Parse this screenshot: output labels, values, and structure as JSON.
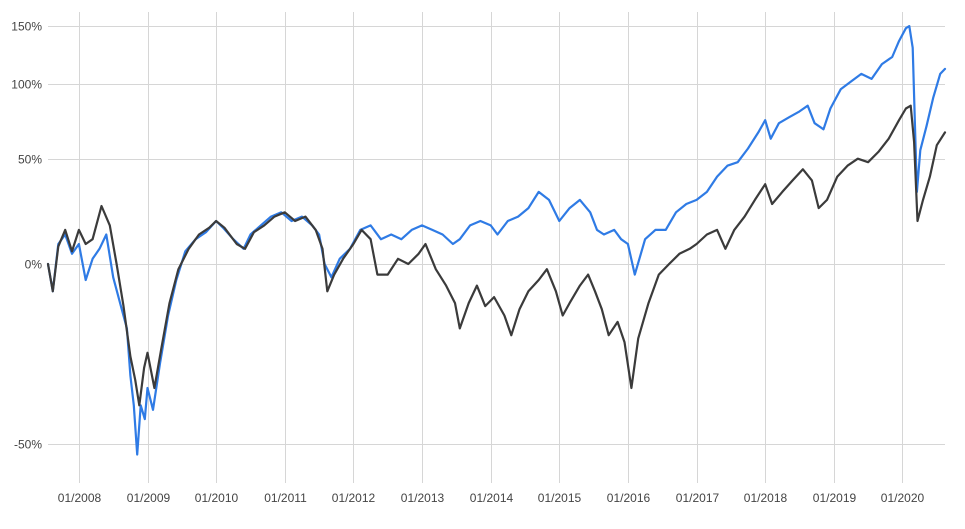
{
  "chart_data": {
    "type": "line",
    "title": "",
    "xlabel": "",
    "ylabel": "",
    "x_range": [
      2007.55,
      2020.62
    ],
    "y_range": [
      -57,
      164
    ],
    "y_scale": "log-return",
    "grid": true,
    "legend": "none",
    "x_ticks": [
      {
        "x": 2008.0,
        "label": "01/2008"
      },
      {
        "x": 2009.0,
        "label": "01/2009"
      },
      {
        "x": 2010.0,
        "label": "01/2010"
      },
      {
        "x": 2011.0,
        "label": "01/2011"
      },
      {
        "x": 2012.0,
        "label": "01/2012"
      },
      {
        "x": 2013.0,
        "label": "01/2013"
      },
      {
        "x": 2014.0,
        "label": "01/2014"
      },
      {
        "x": 2015.0,
        "label": "01/2015"
      },
      {
        "x": 2016.0,
        "label": "01/2016"
      },
      {
        "x": 2017.0,
        "label": "01/2017"
      },
      {
        "x": 2018.0,
        "label": "01/2018"
      },
      {
        "x": 2019.0,
        "label": "01/2019"
      },
      {
        "x": 2020.0,
        "label": "01/2020"
      }
    ],
    "y_ticks": [
      {
        "y": 150,
        "label": "150%"
      },
      {
        "y": 100,
        "label": "100%"
      },
      {
        "y": 50,
        "label": "50%"
      },
      {
        "y": 0,
        "label": "0%"
      },
      {
        "y": -50,
        "label": "-50%"
      }
    ],
    "series": [
      {
        "color": "#2f7be5",
        "points": [
          [
            2007.55,
            0
          ],
          [
            2007.62,
            -10
          ],
          [
            2007.7,
            8
          ],
          [
            2007.8,
            12
          ],
          [
            2007.9,
            4
          ],
          [
            2008.0,
            8
          ],
          [
            2008.1,
            -6
          ],
          [
            2008.2,
            2
          ],
          [
            2008.3,
            6
          ],
          [
            2008.4,
            12
          ],
          [
            2008.5,
            -5
          ],
          [
            2008.6,
            -14
          ],
          [
            2008.7,
            -22
          ],
          [
            2008.75,
            -35
          ],
          [
            2008.8,
            -42
          ],
          [
            2008.85,
            -52
          ],
          [
            2008.9,
            -42
          ],
          [
            2008.96,
            -45
          ],
          [
            2009.0,
            -38
          ],
          [
            2009.08,
            -43
          ],
          [
            2009.18,
            -32
          ],
          [
            2009.3,
            -18
          ],
          [
            2009.42,
            -6
          ],
          [
            2009.55,
            5
          ],
          [
            2009.7,
            10
          ],
          [
            2009.85,
            13
          ],
          [
            2010.0,
            18
          ],
          [
            2010.1,
            15
          ],
          [
            2010.25,
            10
          ],
          [
            2010.4,
            6
          ],
          [
            2010.5,
            12
          ],
          [
            2010.65,
            16
          ],
          [
            2010.8,
            20
          ],
          [
            2010.95,
            22
          ],
          [
            2011.1,
            18
          ],
          [
            2011.25,
            20
          ],
          [
            2011.4,
            16
          ],
          [
            2011.5,
            12
          ],
          [
            2011.58,
            0
          ],
          [
            2011.68,
            -5
          ],
          [
            2011.8,
            2
          ],
          [
            2011.95,
            6
          ],
          [
            2012.1,
            14
          ],
          [
            2012.25,
            16
          ],
          [
            2012.4,
            10
          ],
          [
            2012.55,
            12
          ],
          [
            2012.7,
            10
          ],
          [
            2012.85,
            14
          ],
          [
            2013.0,
            16
          ],
          [
            2013.15,
            14
          ],
          [
            2013.3,
            12
          ],
          [
            2013.45,
            8
          ],
          [
            2013.55,
            10
          ],
          [
            2013.7,
            16
          ],
          [
            2013.85,
            18
          ],
          [
            2014.0,
            16
          ],
          [
            2014.1,
            12
          ],
          [
            2014.25,
            18
          ],
          [
            2014.4,
            20
          ],
          [
            2014.55,
            24
          ],
          [
            2014.7,
            32
          ],
          [
            2014.85,
            28
          ],
          [
            2015.0,
            18
          ],
          [
            2015.15,
            24
          ],
          [
            2015.3,
            28
          ],
          [
            2015.45,
            22
          ],
          [
            2015.55,
            14
          ],
          [
            2015.65,
            12
          ],
          [
            2015.8,
            14
          ],
          [
            2015.9,
            10
          ],
          [
            2016.0,
            8
          ],
          [
            2016.1,
            -4
          ],
          [
            2016.25,
            10
          ],
          [
            2016.4,
            14
          ],
          [
            2016.55,
            14
          ],
          [
            2016.7,
            22
          ],
          [
            2016.85,
            26
          ],
          [
            2017.0,
            28
          ],
          [
            2017.15,
            32
          ],
          [
            2017.3,
            40
          ],
          [
            2017.45,
            46
          ],
          [
            2017.6,
            48
          ],
          [
            2017.75,
            56
          ],
          [
            2017.9,
            66
          ],
          [
            2018.0,
            74
          ],
          [
            2018.08,
            62
          ],
          [
            2018.2,
            72
          ],
          [
            2018.35,
            76
          ],
          [
            2018.5,
            80
          ],
          [
            2018.62,
            84
          ],
          [
            2018.72,
            72
          ],
          [
            2018.85,
            68
          ],
          [
            2018.95,
            82
          ],
          [
            2019.1,
            96
          ],
          [
            2019.25,
            102
          ],
          [
            2019.4,
            108
          ],
          [
            2019.55,
            104
          ],
          [
            2019.7,
            116
          ],
          [
            2019.85,
            122
          ],
          [
            2019.95,
            136
          ],
          [
            2020.05,
            148
          ],
          [
            2020.1,
            150
          ],
          [
            2020.15,
            130
          ],
          [
            2020.21,
            32
          ],
          [
            2020.26,
            55
          ],
          [
            2020.35,
            70
          ],
          [
            2020.45,
            90
          ],
          [
            2020.55,
            108
          ],
          [
            2020.62,
            112
          ]
        ]
      },
      {
        "color": "#3b3b3b",
        "points": [
          [
            2007.55,
            0
          ],
          [
            2007.62,
            -10
          ],
          [
            2007.7,
            7
          ],
          [
            2007.8,
            14
          ],
          [
            2007.9,
            5
          ],
          [
            2008.0,
            14
          ],
          [
            2008.1,
            8
          ],
          [
            2008.2,
            10
          ],
          [
            2008.33,
            25
          ],
          [
            2008.45,
            16
          ],
          [
            2008.55,
            0
          ],
          [
            2008.65,
            -15
          ],
          [
            2008.75,
            -30
          ],
          [
            2008.82,
            -36
          ],
          [
            2008.88,
            -42
          ],
          [
            2008.95,
            -33
          ],
          [
            2009.0,
            -29
          ],
          [
            2009.1,
            -38
          ],
          [
            2009.2,
            -28
          ],
          [
            2009.32,
            -14
          ],
          [
            2009.45,
            -2
          ],
          [
            2009.6,
            6
          ],
          [
            2009.75,
            12
          ],
          [
            2009.9,
            15
          ],
          [
            2010.0,
            18
          ],
          [
            2010.12,
            15
          ],
          [
            2010.3,
            8
          ],
          [
            2010.42,
            6
          ],
          [
            2010.55,
            13
          ],
          [
            2010.7,
            16
          ],
          [
            2010.85,
            20
          ],
          [
            2011.0,
            22
          ],
          [
            2011.15,
            18
          ],
          [
            2011.3,
            20
          ],
          [
            2011.45,
            14
          ],
          [
            2011.55,
            6
          ],
          [
            2011.62,
            -10
          ],
          [
            2011.72,
            -4
          ],
          [
            2011.85,
            2
          ],
          [
            2012.0,
            8
          ],
          [
            2012.12,
            14
          ],
          [
            2012.25,
            10
          ],
          [
            2012.35,
            -4
          ],
          [
            2012.5,
            -4
          ],
          [
            2012.65,
            2
          ],
          [
            2012.8,
            0
          ],
          [
            2012.95,
            4
          ],
          [
            2013.05,
            8
          ],
          [
            2013.2,
            -2
          ],
          [
            2013.35,
            -8
          ],
          [
            2013.48,
            -14
          ],
          [
            2013.55,
            -22
          ],
          [
            2013.68,
            -14
          ],
          [
            2013.8,
            -8
          ],
          [
            2013.92,
            -15
          ],
          [
            2014.05,
            -12
          ],
          [
            2014.2,
            -18
          ],
          [
            2014.3,
            -24
          ],
          [
            2014.42,
            -16
          ],
          [
            2014.55,
            -10
          ],
          [
            2014.7,
            -6
          ],
          [
            2014.82,
            -2
          ],
          [
            2014.95,
            -10
          ],
          [
            2015.05,
            -18
          ],
          [
            2015.15,
            -14
          ],
          [
            2015.3,
            -8
          ],
          [
            2015.42,
            -4
          ],
          [
            2015.52,
            -10
          ],
          [
            2015.62,
            -16
          ],
          [
            2015.72,
            -24
          ],
          [
            2015.85,
            -20
          ],
          [
            2015.95,
            -26
          ],
          [
            2016.05,
            -38
          ],
          [
            2016.15,
            -25
          ],
          [
            2016.3,
            -14
          ],
          [
            2016.45,
            -4
          ],
          [
            2016.6,
            0
          ],
          [
            2016.75,
            4
          ],
          [
            2016.9,
            6
          ],
          [
            2017.0,
            8
          ],
          [
            2017.15,
            12
          ],
          [
            2017.3,
            14
          ],
          [
            2017.42,
            6
          ],
          [
            2017.55,
            14
          ],
          [
            2017.7,
            20
          ],
          [
            2017.85,
            28
          ],
          [
            2018.0,
            36
          ],
          [
            2018.1,
            26
          ],
          [
            2018.25,
            32
          ],
          [
            2018.4,
            38
          ],
          [
            2018.55,
            44
          ],
          [
            2018.68,
            38
          ],
          [
            2018.78,
            24
          ],
          [
            2018.9,
            28
          ],
          [
            2019.05,
            40
          ],
          [
            2019.2,
            46
          ],
          [
            2019.35,
            50
          ],
          [
            2019.5,
            48
          ],
          [
            2019.65,
            54
          ],
          [
            2019.8,
            62
          ],
          [
            2019.95,
            74
          ],
          [
            2020.05,
            82
          ],
          [
            2020.12,
            84
          ],
          [
            2020.17,
            60
          ],
          [
            2020.22,
            18
          ],
          [
            2020.3,
            28
          ],
          [
            2020.4,
            40
          ],
          [
            2020.5,
            58
          ],
          [
            2020.62,
            66
          ]
        ]
      }
    ]
  }
}
